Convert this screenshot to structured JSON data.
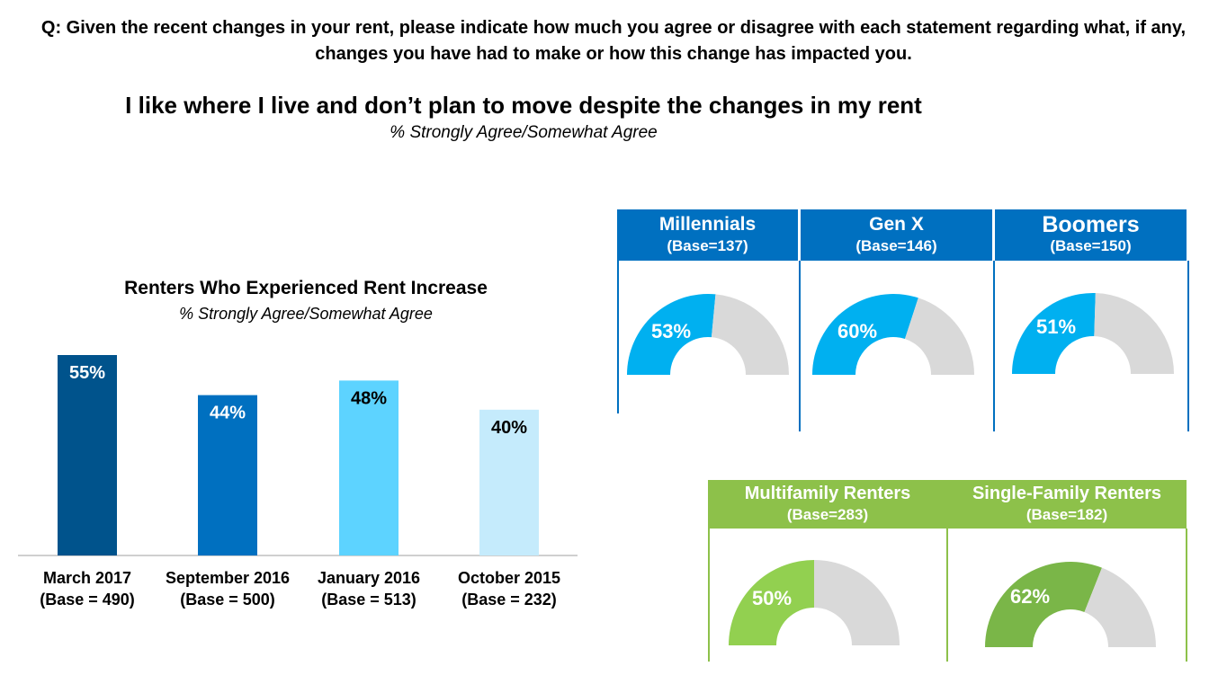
{
  "question": "Q: Given the recent changes in your rent, please indicate how much you agree or disagree with each statement regarding what, if any, changes you have had to make or how this change has impacted you.",
  "slide": {
    "title": "I like where I live and don’t plan to move despite the changes in my rent",
    "subtitle": "% Strongly Agree/Somewhat Agree"
  },
  "colors": {
    "generation_header": "#0070C0",
    "generation_fill": "#00B0F0",
    "housing_header": "#8DC14A",
    "multifamily_fill": "#92D050",
    "singlefamily_fill": "#7AB648",
    "gauge_remainder": "#D9D9D9"
  },
  "generations": [
    {
      "name": "Millennials",
      "base": "(Base=137)",
      "label": "53%",
      "value": 53
    },
    {
      "name": "Gen X",
      "base": "(Base=146)",
      "label": "60%",
      "value": 60
    },
    {
      "name": "Boomers",
      "base": "(Base=150)",
      "label": "51%",
      "value": 51
    }
  ],
  "housing": [
    {
      "name": "Multifamily Renters",
      "base": "(Base=283)",
      "label": "50%",
      "value": 50
    },
    {
      "name": "Single-Family Renters",
      "base": "(Base=182)",
      "label": "62%",
      "value": 62
    }
  ],
  "chart_data": [
    {
      "type": "bar",
      "title": "Renters Who Experienced Rent Increase",
      "subtitle": "% Strongly Agree/Somewhat Agree",
      "categories": [
        "March 2017",
        "September 2016",
        "January 2016",
        "October 2015"
      ],
      "bases": [
        "(Base = 490)",
        "(Base = 500)",
        "(Base = 513)",
        "(Base = 232)"
      ],
      "values": [
        55,
        44,
        48,
        40
      ],
      "labels": [
        "55%",
        "44%",
        "48%",
        "40%"
      ],
      "bar_colors": [
        "#00538C",
        "#0070C0",
        "#5DD3FF",
        "#C5EBFC"
      ],
      "label_colors": [
        "#FFFFFF",
        "#FFFFFF",
        "#000000",
        "#000000"
      ],
      "ylim": [
        0,
        55
      ],
      "grid": false
    },
    {
      "type": "pie",
      "title": "",
      "categories": [
        "Millennials",
        "Gen X",
        "Boomers",
        "Multifamily Renters",
        "Single-Family Renters"
      ],
      "values": [
        53,
        60,
        51,
        50,
        62
      ]
    }
  ]
}
